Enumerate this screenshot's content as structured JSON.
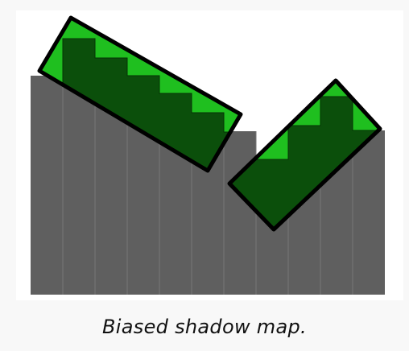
{
  "caption": "Biased shadow map.",
  "colors": {
    "background": "#f8f8f8",
    "panel": "#ffffff",
    "depth_column": "#5f5f5f",
    "depth_column_divider": "#757575",
    "shadow_map_dark": "#0b4f0b",
    "shadow_map_light": "#1fbf1f",
    "outline": "#000000"
  },
  "shadow_map": {
    "columns": 11,
    "biased": true
  }
}
